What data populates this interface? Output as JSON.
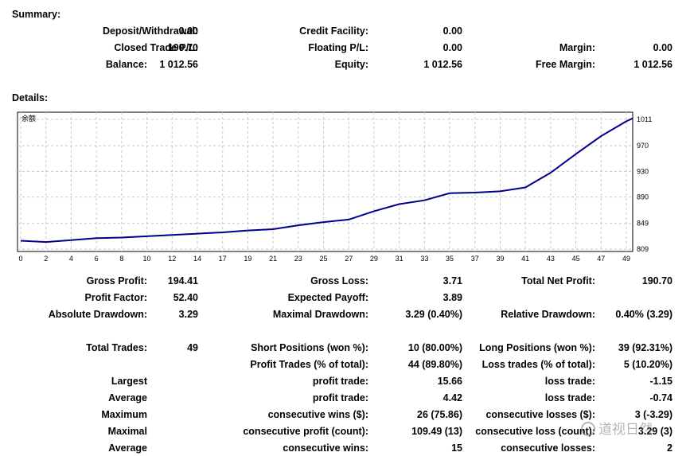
{
  "summary": {
    "heading": "Summary:",
    "deposit_label": "Deposit/Withdrawal:",
    "deposit_value": "0.00",
    "credit_label": "Credit Facility:",
    "credit_value": "0.00",
    "closed_label": "Closed Trade P/L:",
    "closed_value": "190.70",
    "floating_label": "Floating P/L:",
    "floating_value": "0.00",
    "margin_label": "Margin:",
    "margin_value": "0.00",
    "balance_label": "Balance:",
    "balance_value": "1 012.56",
    "equity_label": "Equity:",
    "equity_value": "1 012.56",
    "free_margin_label": "Free Margin:",
    "free_margin_value": "1 012.56"
  },
  "details": {
    "heading": "Details:",
    "gross_profit_label": "Gross Profit:",
    "gross_profit_value": "194.41",
    "gross_loss_label": "Gross Loss:",
    "gross_loss_value": "3.71",
    "total_net_label": "Total Net Profit:",
    "total_net_value": "190.70",
    "profit_factor_label": "Profit Factor:",
    "profit_factor_value": "52.40",
    "expected_payoff_label": "Expected Payoff:",
    "expected_payoff_value": "3.89",
    "abs_dd_label": "Absolute Drawdown:",
    "abs_dd_value": "3.29",
    "max_dd_label": "Maximal Drawdown:",
    "max_dd_value": "3.29 (0.40%)",
    "rel_dd_label": "Relative Drawdown:",
    "rel_dd_value": "0.40% (3.29)",
    "total_trades_label": "Total Trades:",
    "total_trades_value": "49",
    "short_label": "Short Positions (won %):",
    "short_value": "10 (80.00%)",
    "long_label": "Long Positions (won %):",
    "long_value": "39 (92.31%)",
    "profit_trades_label": "Profit Trades (% of total):",
    "profit_trades_value": "44 (89.80%)",
    "loss_trades_label": "Loss trades (% of total):",
    "loss_trades_value": "5 (10.20%)",
    "largest_label": "Largest",
    "largest_profit_label": "profit trade:",
    "largest_profit_value": "15.66",
    "largest_loss_label": "loss trade:",
    "largest_loss_value": "-1.15",
    "average_label": "Average",
    "average_profit_label": "profit trade:",
    "average_profit_value": "4.42",
    "average_loss_label": "loss trade:",
    "average_loss_value": "-0.74",
    "maximum_label": "Maximum",
    "max_wins_label": "consecutive wins ($):",
    "max_wins_value": "26 (75.86)",
    "max_losses_label": "consecutive losses ($):",
    "max_losses_value": "3 (-3.29)",
    "maximal_label": "Maximal",
    "maximal_profit_label": "consecutive profit (count):",
    "maximal_profit_value": "109.49 (13)",
    "maximal_loss_label": "consecutive loss (count):",
    "maximal_loss_value": "3.29 (3)",
    "average2_label": "Average",
    "avg_wins_label": "consecutive wins:",
    "avg_wins_value": "15",
    "avg_losses_label": "consecutive losses:",
    "avg_losses_value": "2"
  },
  "watermark": {
    "text": "道视日然",
    "icon": "weibo-icon"
  },
  "chart_data": {
    "type": "line",
    "title": "余额",
    "xlabel": "",
    "ylabel": "",
    "x": [
      0,
      2,
      4,
      6,
      8,
      10,
      12,
      14,
      17,
      19,
      21,
      23,
      25,
      27,
      29,
      31,
      33,
      35,
      37,
      39,
      41,
      43,
      45,
      47,
      49,
      50
    ],
    "y": [
      822,
      820,
      823,
      826,
      827,
      829,
      831,
      833,
      835,
      838,
      840,
      846,
      851,
      855,
      868,
      879,
      885,
      896,
      897,
      899,
      905,
      928,
      957,
      985,
      1008,
      1012.56
    ],
    "x_ticks": [
      "0",
      "2",
      "4",
      "6",
      "8",
      "10",
      "12",
      "14",
      "17",
      "19",
      "21",
      "23",
      "25",
      "27",
      "29",
      "31",
      "33",
      "35",
      "37",
      "39",
      "41",
      "43",
      "45",
      "47",
      "49"
    ],
    "y_ticks": [
      "809",
      "849",
      "890",
      "930",
      "970",
      "1011"
    ],
    "ylim": [
      809,
      1011
    ],
    "grid": true,
    "line_color": "#00008b"
  }
}
